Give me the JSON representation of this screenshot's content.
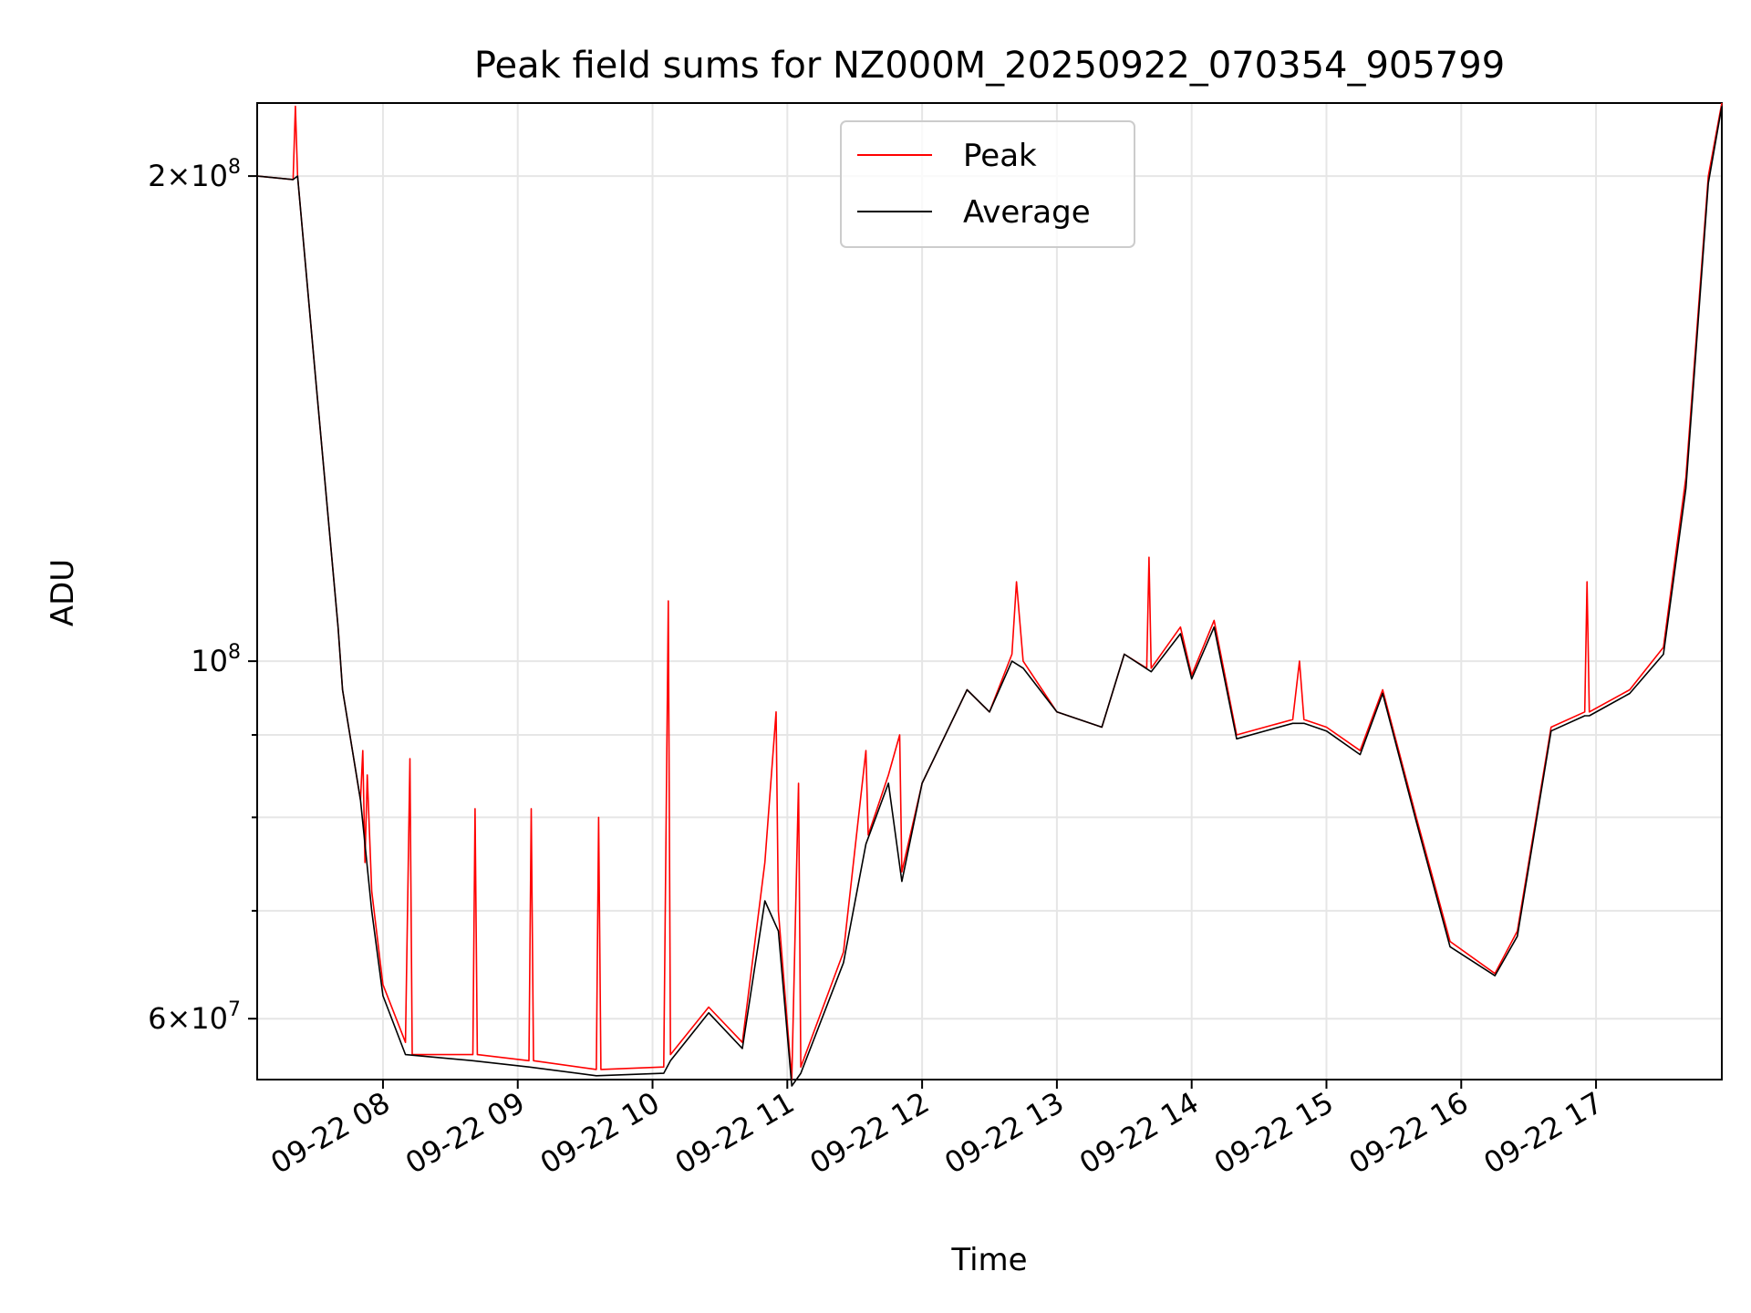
{
  "chart_data": {
    "type": "line",
    "title": "Peak field sums for NZ000M_20250922_070354_905799",
    "xlabel": "Time",
    "ylabel": "ADU",
    "y_scale": "log",
    "xlim": [
      "2025-09-22 07:04",
      "2025-09-22 17:56"
    ],
    "ylim": [
      55000000,
      222000000
    ],
    "x_ticks": [
      {
        "t": "2025-09-22 08:00",
        "label": "09-22 08"
      },
      {
        "t": "2025-09-22 09:00",
        "label": "09-22 09"
      },
      {
        "t": "2025-09-22 10:00",
        "label": "09-22 10"
      },
      {
        "t": "2025-09-22 11:00",
        "label": "09-22 11"
      },
      {
        "t": "2025-09-22 12:00",
        "label": "09-22 12"
      },
      {
        "t": "2025-09-22 13:00",
        "label": "09-22 13"
      },
      {
        "t": "2025-09-22 14:00",
        "label": "09-22 14"
      },
      {
        "t": "2025-09-22 15:00",
        "label": "09-22 15"
      },
      {
        "t": "2025-09-22 16:00",
        "label": "09-22 16"
      },
      {
        "t": "2025-09-22 17:00",
        "label": "09-22 17"
      }
    ],
    "y_major_ticks": [
      {
        "value": 60000000,
        "mantissa": "6",
        "exponent": "7"
      },
      {
        "value": 100000000,
        "mantissa": "",
        "exponent": "8"
      },
      {
        "value": 200000000,
        "mantissa": "2",
        "exponent": "8"
      }
    ],
    "y_minor_ticks": [
      70000000,
      80000000,
      90000000
    ],
    "grid": true,
    "legend_position": "top-center",
    "series": [
      {
        "name": "Peak",
        "color": "#ff0000",
        "points": [
          [
            "2025-09-22 07:04",
            200000000
          ],
          [
            "2025-09-22 07:20",
            199000000
          ],
          [
            "2025-09-22 07:21",
            221000000
          ],
          [
            "2025-09-22 07:22",
            200000000
          ],
          [
            "2025-09-22 07:30",
            150000000
          ],
          [
            "2025-09-22 07:40",
            105000000
          ],
          [
            "2025-09-22 07:42",
            96000000
          ],
          [
            "2025-09-22 07:50",
            82000000
          ],
          [
            "2025-09-22 07:51",
            88000000
          ],
          [
            "2025-09-22 07:52",
            75000000
          ],
          [
            "2025-09-22 07:53",
            85000000
          ],
          [
            "2025-09-22 07:55",
            72000000
          ],
          [
            "2025-09-22 08:00",
            63000000
          ],
          [
            "2025-09-22 08:10",
            58000000
          ],
          [
            "2025-09-22 08:12",
            87000000
          ],
          [
            "2025-09-22 08:13",
            57000000
          ],
          [
            "2025-09-22 08:40",
            57000000
          ],
          [
            "2025-09-22 08:41",
            81000000
          ],
          [
            "2025-09-22 08:42",
            57000000
          ],
          [
            "2025-09-22 09:05",
            56500000
          ],
          [
            "2025-09-22 09:06",
            81000000
          ],
          [
            "2025-09-22 09:07",
            56500000
          ],
          [
            "2025-09-22 09:35",
            55800000
          ],
          [
            "2025-09-22 09:36",
            80000000
          ],
          [
            "2025-09-22 09:37",
            55800000
          ],
          [
            "2025-09-22 10:05",
            56000000
          ],
          [
            "2025-09-22 10:07",
            109000000
          ],
          [
            "2025-09-22 10:08",
            57000000
          ],
          [
            "2025-09-22 10:25",
            61000000
          ],
          [
            "2025-09-22 10:40",
            58000000
          ],
          [
            "2025-09-22 10:50",
            75000000
          ],
          [
            "2025-09-22 10:55",
            93000000
          ],
          [
            "2025-09-22 10:56",
            70000000
          ],
          [
            "2025-09-22 11:02",
            55000000
          ],
          [
            "2025-09-22 11:05",
            84000000
          ],
          [
            "2025-09-22 11:06",
            56000000
          ],
          [
            "2025-09-22 11:25",
            66000000
          ],
          [
            "2025-09-22 11:35",
            88000000
          ],
          [
            "2025-09-22 11:36",
            78000000
          ],
          [
            "2025-09-22 11:45",
            85000000
          ],
          [
            "2025-09-22 11:50",
            90000000
          ],
          [
            "2025-09-22 11:51",
            74000000
          ],
          [
            "2025-09-22 12:00",
            84000000
          ],
          [
            "2025-09-22 12:20",
            96000000
          ],
          [
            "2025-09-22 12:30",
            93000000
          ],
          [
            "2025-09-22 12:40",
            101000000
          ],
          [
            "2025-09-22 12:42",
            112000000
          ],
          [
            "2025-09-22 12:45",
            100000000
          ],
          [
            "2025-09-22 13:00",
            93000000
          ],
          [
            "2025-09-22 13:20",
            91000000
          ],
          [
            "2025-09-22 13:30",
            101000000
          ],
          [
            "2025-09-22 13:40",
            99000000
          ],
          [
            "2025-09-22 13:41",
            116000000
          ],
          [
            "2025-09-22 13:42",
            99000000
          ],
          [
            "2025-09-22 13:55",
            105000000
          ],
          [
            "2025-09-22 14:00",
            98000000
          ],
          [
            "2025-09-22 14:10",
            106000000
          ],
          [
            "2025-09-22 14:20",
            90000000
          ],
          [
            "2025-09-22 14:45",
            92000000
          ],
          [
            "2025-09-22 14:48",
            100000000
          ],
          [
            "2025-09-22 14:50",
            92000000
          ],
          [
            "2025-09-22 15:00",
            91000000
          ],
          [
            "2025-09-22 15:15",
            88000000
          ],
          [
            "2025-09-22 15:25",
            96000000
          ],
          [
            "2025-09-22 15:40",
            80000000
          ],
          [
            "2025-09-22 15:55",
            67000000
          ],
          [
            "2025-09-22 16:15",
            64000000
          ],
          [
            "2025-09-22 16:25",
            68000000
          ],
          [
            "2025-09-22 16:40",
            91000000
          ],
          [
            "2025-09-22 16:55",
            93000000
          ],
          [
            "2025-09-22 16:56",
            112000000
          ],
          [
            "2025-09-22 16:57",
            93000000
          ],
          [
            "2025-09-22 17:15",
            96000000
          ],
          [
            "2025-09-22 17:30",
            102000000
          ],
          [
            "2025-09-22 17:40",
            130000000
          ],
          [
            "2025-09-22 17:50",
            200000000
          ],
          [
            "2025-09-22 17:56",
            222000000
          ]
        ]
      },
      {
        "name": "Average",
        "color": "#000000",
        "points": [
          [
            "2025-09-22 07:04",
            200000000
          ],
          [
            "2025-09-22 07:20",
            199000000
          ],
          [
            "2025-09-22 07:22",
            200000000
          ],
          [
            "2025-09-22 07:30",
            150000000
          ],
          [
            "2025-09-22 07:40",
            105000000
          ],
          [
            "2025-09-22 07:42",
            96000000
          ],
          [
            "2025-09-22 07:50",
            82000000
          ],
          [
            "2025-09-22 07:55",
            70000000
          ],
          [
            "2025-09-22 08:00",
            62000000
          ],
          [
            "2025-09-22 08:10",
            57000000
          ],
          [
            "2025-09-22 08:40",
            56500000
          ],
          [
            "2025-09-22 09:05",
            56000000
          ],
          [
            "2025-09-22 09:35",
            55300000
          ],
          [
            "2025-09-22 10:05",
            55500000
          ],
          [
            "2025-09-22 10:08",
            56500000
          ],
          [
            "2025-09-22 10:25",
            60500000
          ],
          [
            "2025-09-22 10:40",
            57500000
          ],
          [
            "2025-09-22 10:50",
            71000000
          ],
          [
            "2025-09-22 10:56",
            68000000
          ],
          [
            "2025-09-22 11:02",
            54500000
          ],
          [
            "2025-09-22 11:06",
            55500000
          ],
          [
            "2025-09-22 11:25",
            65000000
          ],
          [
            "2025-09-22 11:35",
            77000000
          ],
          [
            "2025-09-22 11:45",
            84000000
          ],
          [
            "2025-09-22 11:51",
            73000000
          ],
          [
            "2025-09-22 12:00",
            84000000
          ],
          [
            "2025-09-22 12:20",
            96000000
          ],
          [
            "2025-09-22 12:30",
            93000000
          ],
          [
            "2025-09-22 12:40",
            100000000
          ],
          [
            "2025-09-22 12:45",
            99000000
          ],
          [
            "2025-09-22 13:00",
            93000000
          ],
          [
            "2025-09-22 13:20",
            91000000
          ],
          [
            "2025-09-22 13:30",
            101000000
          ],
          [
            "2025-09-22 13:42",
            98500000
          ],
          [
            "2025-09-22 13:55",
            104000000
          ],
          [
            "2025-09-22 14:00",
            97500000
          ],
          [
            "2025-09-22 14:10",
            105000000
          ],
          [
            "2025-09-22 14:20",
            89500000
          ],
          [
            "2025-09-22 14:45",
            91500000
          ],
          [
            "2025-09-22 14:50",
            91500000
          ],
          [
            "2025-09-22 15:00",
            90500000
          ],
          [
            "2025-09-22 15:15",
            87500000
          ],
          [
            "2025-09-22 15:25",
            95500000
          ],
          [
            "2025-09-22 15:40",
            79500000
          ],
          [
            "2025-09-22 15:55",
            66500000
          ],
          [
            "2025-09-22 16:15",
            63800000
          ],
          [
            "2025-09-22 16:25",
            67500000
          ],
          [
            "2025-09-22 16:40",
            90500000
          ],
          [
            "2025-09-22 16:55",
            92500000
          ],
          [
            "2025-09-22 16:57",
            92500000
          ],
          [
            "2025-09-22 17:15",
            95500000
          ],
          [
            "2025-09-22 17:30",
            101000000
          ],
          [
            "2025-09-22 17:40",
            128000000
          ],
          [
            "2025-09-22 17:50",
            198000000
          ],
          [
            "2025-09-22 17:56",
            221000000
          ]
        ]
      }
    ]
  }
}
